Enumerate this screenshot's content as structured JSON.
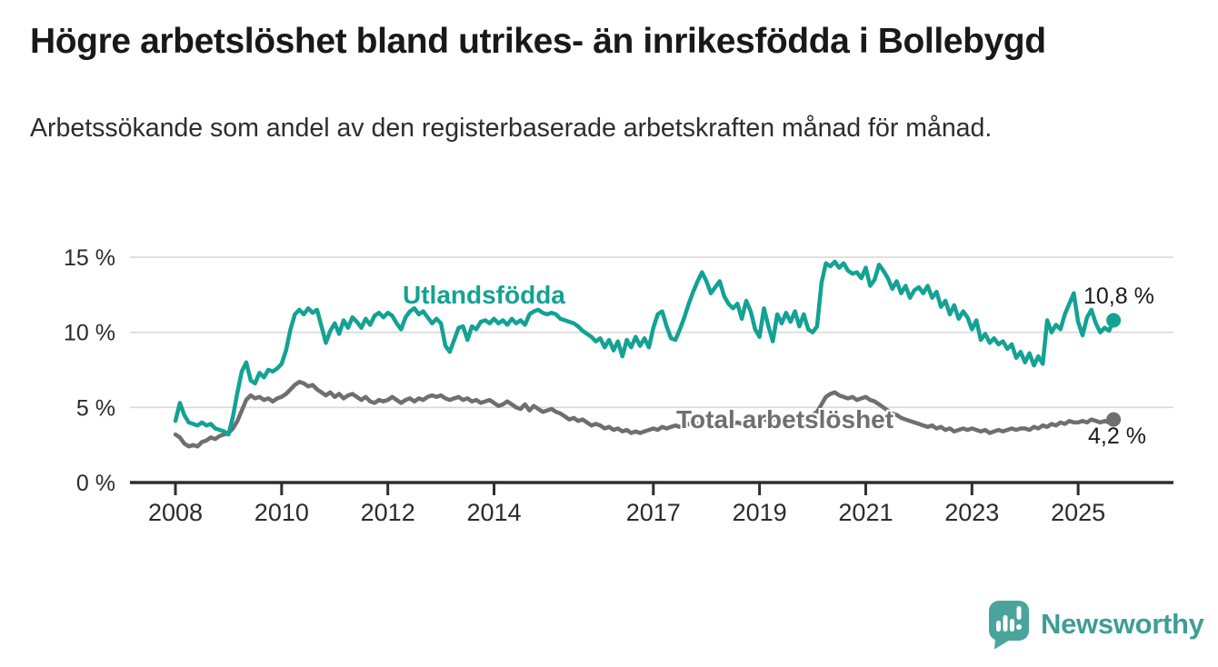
{
  "header": {
    "title": "Högre arbetslöshet bland utrikes- än inrikesfödda i Bollebygd",
    "subtitle": "Arbetssökande som andel av den registerbaserade arbetskraften månad för månad."
  },
  "colors": {
    "accent_teal": "#13A294",
    "series_gray": "#6F6F6F",
    "grid": "#D9D9D9",
    "axis": "#2E2E2E",
    "tick_text": "#2B2B2B",
    "value_text": "#1A1A1A",
    "brand_teal": "#3F9E96"
  },
  "chart_data": {
    "type": "line",
    "unit": "%",
    "frequency": "monthly",
    "x_start": {
      "year": 2008,
      "month": 1
    },
    "x_end": {
      "year": 2025,
      "month": 9
    },
    "x_ticks": [
      2008,
      2010,
      2012,
      2014,
      2017,
      2019,
      2021,
      2023,
      2025
    ],
    "y_ticks": [
      {
        "value": 0,
        "label": "0 %"
      },
      {
        "value": 5,
        "label": "5 %"
      },
      {
        "value": 10,
        "label": "10 %"
      },
      {
        "value": 15,
        "label": "15 %"
      }
    ],
    "ylim": [
      0,
      15.5
    ],
    "grid": true,
    "legend_position": "inline-labels",
    "series": [
      {
        "name": "Total arbetslöshet",
        "label": "Total arbetslöshet",
        "color": "#6F6F6F",
        "end_label": "4,2 %",
        "end_value": 4.2,
        "values": [
          3.2,
          3.0,
          2.6,
          2.4,
          2.5,
          2.4,
          2.7,
          2.8,
          3.0,
          2.9,
          3.1,
          3.2,
          3.3,
          3.6,
          4.1,
          4.8,
          5.5,
          5.8,
          5.6,
          5.7,
          5.5,
          5.6,
          5.4,
          5.6,
          5.7,
          5.9,
          6.2,
          6.5,
          6.7,
          6.6,
          6.4,
          6.5,
          6.2,
          6.0,
          5.8,
          6.0,
          5.7,
          5.9,
          5.6,
          5.8,
          5.9,
          5.7,
          5.5,
          5.7,
          5.4,
          5.3,
          5.5,
          5.4,
          5.5,
          5.7,
          5.5,
          5.3,
          5.5,
          5.6,
          5.4,
          5.6,
          5.5,
          5.7,
          5.8,
          5.7,
          5.8,
          5.6,
          5.5,
          5.6,
          5.7,
          5.5,
          5.6,
          5.4,
          5.5,
          5.3,
          5.4,
          5.5,
          5.3,
          5.1,
          5.2,
          5.4,
          5.2,
          5.0,
          4.9,
          5.2,
          4.8,
          5.1,
          4.9,
          4.7,
          4.8,
          4.9,
          4.7,
          4.6,
          4.4,
          4.2,
          4.3,
          4.1,
          4.2,
          4.0,
          3.8,
          3.9,
          3.8,
          3.6,
          3.7,
          3.5,
          3.6,
          3.4,
          3.5,
          3.3,
          3.4,
          3.3,
          3.4,
          3.5,
          3.6,
          3.5,
          3.7,
          3.6,
          3.7,
          3.8,
          3.7,
          3.8,
          3.9,
          3.8,
          3.9,
          4.0,
          3.9,
          3.8,
          3.9,
          4.0,
          3.9,
          3.8,
          3.9,
          4.0,
          3.9,
          4.0,
          4.1,
          4.0,
          4.1,
          4.2,
          4.1,
          4.2,
          4.3,
          4.2,
          4.3,
          4.2,
          4.3,
          4.4,
          4.3,
          4.4,
          4.5,
          4.7,
          5.2,
          5.7,
          5.9,
          6.0,
          5.8,
          5.7,
          5.6,
          5.7,
          5.5,
          5.6,
          5.7,
          5.5,
          5.4,
          5.2,
          5.0,
          4.8,
          4.6,
          4.5,
          4.3,
          4.2,
          4.1,
          4.0,
          3.9,
          3.8,
          3.7,
          3.8,
          3.6,
          3.7,
          3.5,
          3.6,
          3.4,
          3.5,
          3.6,
          3.5,
          3.6,
          3.5,
          3.4,
          3.5,
          3.3,
          3.4,
          3.5,
          3.4,
          3.5,
          3.6,
          3.5,
          3.6,
          3.6,
          3.5,
          3.7,
          3.6,
          3.8,
          3.7,
          3.9,
          3.8,
          4.0,
          3.9,
          4.1,
          4.0,
          4.0,
          4.1,
          4.0,
          4.2,
          4.1,
          4.0,
          4.1,
          4.0,
          4.2
        ]
      },
      {
        "name": "Utlandsfödda",
        "label": "Utlandsfödda",
        "color": "#13A294",
        "end_label": "10,8 %",
        "end_value": 10.8,
        "values": [
          4.1,
          5.3,
          4.5,
          4.0,
          3.9,
          3.8,
          4.0,
          3.8,
          3.9,
          3.6,
          3.5,
          3.4,
          3.2,
          4.4,
          6.0,
          7.4,
          8.0,
          6.8,
          6.6,
          7.3,
          7.0,
          7.5,
          7.4,
          7.6,
          7.9,
          8.8,
          10.2,
          11.2,
          11.5,
          11.2,
          11.6,
          11.3,
          11.5,
          10.4,
          9.3,
          10.1,
          10.6,
          9.9,
          10.8,
          10.3,
          11.0,
          10.7,
          10.3,
          10.9,
          10.5,
          11.1,
          11.3,
          11.0,
          11.3,
          11.1,
          10.6,
          10.2,
          11.0,
          11.4,
          11.6,
          11.2,
          11.4,
          11.0,
          10.6,
          10.9,
          10.6,
          9.1,
          8.7,
          9.5,
          10.3,
          10.4,
          9.5,
          10.4,
          10.2,
          10.7,
          10.8,
          10.6,
          10.9,
          10.6,
          10.8,
          10.5,
          10.9,
          10.6,
          10.8,
          10.5,
          11.2,
          11.4,
          11.5,
          11.3,
          11.2,
          11.3,
          11.2,
          10.9,
          10.8,
          10.7,
          10.6,
          10.4,
          10.1,
          9.9,
          9.7,
          9.4,
          9.6,
          9.0,
          9.5,
          8.8,
          9.4,
          8.4,
          9.5,
          9.0,
          9.7,
          9.1,
          9.6,
          9.0,
          10.3,
          11.2,
          11.4,
          10.4,
          9.6,
          9.5,
          10.2,
          11.0,
          11.9,
          12.7,
          13.4,
          14.0,
          13.4,
          12.6,
          13.0,
          13.4,
          12.4,
          11.9,
          11.6,
          11.9,
          10.9,
          12.1,
          11.4,
          10.2,
          9.7,
          11.6,
          10.4,
          9.4,
          11.2,
          10.6,
          11.3,
          10.7,
          11.4,
          10.4,
          11.2,
          10.2,
          10.0,
          10.4,
          13.3,
          14.6,
          14.4,
          14.7,
          14.3,
          14.6,
          14.1,
          13.9,
          14.0,
          13.6,
          14.3,
          13.1,
          13.5,
          14.5,
          14.1,
          13.6,
          12.9,
          13.4,
          12.6,
          13.1,
          12.3,
          12.8,
          13.0,
          12.6,
          13.1,
          12.3,
          12.7,
          11.7,
          12.1,
          11.2,
          11.8,
          10.9,
          11.4,
          11.0,
          10.2,
          10.8,
          9.5,
          9.9,
          9.3,
          9.6,
          9.2,
          9.4,
          8.9,
          9.2,
          8.3,
          8.7,
          8.0,
          8.6,
          7.8,
          8.4,
          7.9,
          10.8,
          10.0,
          10.5,
          10.2,
          11.2,
          11.9,
          12.6,
          10.7,
          9.8,
          11.0,
          11.5,
          10.6,
          10.0,
          10.3,
          10.1,
          10.8
        ]
      }
    ]
  },
  "footer": {
    "brand": "Newsworthy"
  }
}
